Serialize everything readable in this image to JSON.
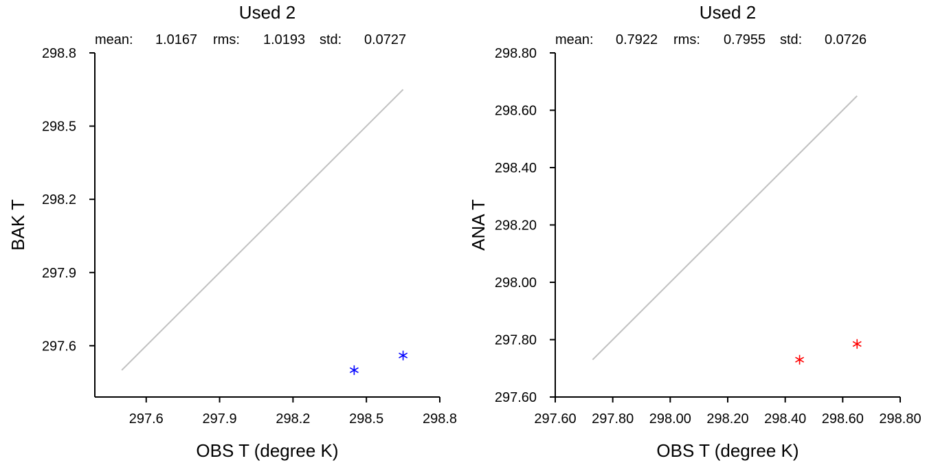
{
  "chart_data": [
    {
      "type": "scatter",
      "title": "Used  2",
      "stats": {
        "mean_label": "mean:",
        "mean_value": "1.0167",
        "rms_label": "rms:",
        "rms_value": "1.0193",
        "std_label": "std:",
        "std_value": "0.0727"
      },
      "xlabel": "OBS T  (degree K)",
      "ylabel": "BAK T",
      "xlim": [
        297.39,
        298.8
      ],
      "ylim": [
        297.39,
        298.8
      ],
      "xticks": [
        "297.6",
        "297.9",
        "298.2",
        "298.5",
        "298.8"
      ],
      "yticks": [
        "297.6",
        "297.9",
        "298.2",
        "298.5",
        "298.8"
      ],
      "marker_color": "#0000ff",
      "reference_line": {
        "x": [
          297.5,
          298.65
        ],
        "y": [
          297.5,
          298.65
        ],
        "color": "#c0c0c0"
      },
      "points": [
        {
          "x": 298.45,
          "y": 297.5
        },
        {
          "x": 298.65,
          "y": 297.56
        }
      ]
    },
    {
      "type": "scatter",
      "title": "Used  2",
      "stats": {
        "mean_label": "mean:",
        "mean_value": "0.7922",
        "rms_label": "rms:",
        "rms_value": "0.7955",
        "std_label": "std:",
        "std_value": "0.0726"
      },
      "xlabel": "OBS T  (degree K)",
      "ylabel": "ANA T",
      "xlim": [
        297.6,
        298.8
      ],
      "ylim": [
        297.6,
        298.8
      ],
      "xticks": [
        "297.60",
        "297.80",
        "298.00",
        "298.20",
        "298.40",
        "298.60",
        "298.80"
      ],
      "yticks": [
        "297.60",
        "297.80",
        "298.00",
        "298.20",
        "298.40",
        "298.60",
        "298.80"
      ],
      "marker_color": "#ff0000",
      "reference_line": {
        "x": [
          297.73,
          298.65
        ],
        "y": [
          297.73,
          298.65
        ],
        "color": "#c0c0c0"
      },
      "points": [
        {
          "x": 298.45,
          "y": 297.73
        },
        {
          "x": 298.65,
          "y": 297.785
        }
      ]
    }
  ]
}
